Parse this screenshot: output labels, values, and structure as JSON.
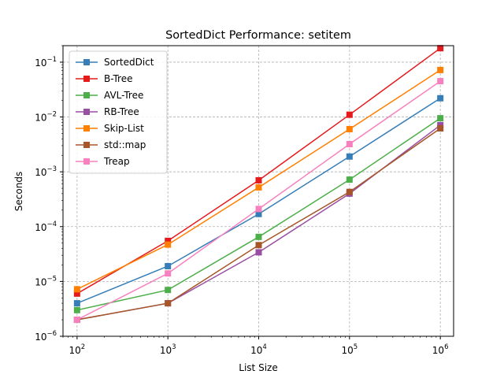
{
  "chart_data": {
    "type": "line",
    "title": "SortedDict Performance: setitem",
    "xlabel": "List Size",
    "ylabel": "Seconds",
    "xscale": "log",
    "yscale": "log",
    "xlim": [
      70,
      1400000
    ],
    "ylim": [
      1e-06,
      0.2
    ],
    "grid": true,
    "legend_position": "top-left",
    "x": [
      100,
      1000,
      10000,
      100000,
      1000000
    ],
    "x_ticks": [
      {
        "value": 100,
        "base": "10",
        "exp": "2"
      },
      {
        "value": 1000,
        "base": "10",
        "exp": "3"
      },
      {
        "value": 10000,
        "base": "10",
        "exp": "4"
      },
      {
        "value": 100000,
        "base": "10",
        "exp": "5"
      },
      {
        "value": 1000000,
        "base": "10",
        "exp": "6"
      }
    ],
    "y_ticks": [
      {
        "value": 1e-06,
        "base": "10",
        "exp": "−6"
      },
      {
        "value": 1e-05,
        "base": "10",
        "exp": "−5"
      },
      {
        "value": 0.0001,
        "base": "10",
        "exp": "−4"
      },
      {
        "value": 0.001,
        "base": "10",
        "exp": "−3"
      },
      {
        "value": 0.01,
        "base": "10",
        "exp": "−2"
      },
      {
        "value": 0.1,
        "base": "10",
        "exp": "−1"
      }
    ],
    "series": [
      {
        "name": "SortedDict",
        "color": "#377eb8",
        "values": [
          4e-06,
          1.9e-05,
          0.00017,
          0.0019,
          0.022
        ]
      },
      {
        "name": "B-Tree",
        "color": "#e41a1c",
        "values": [
          6e-06,
          5.5e-05,
          0.0007,
          0.011,
          0.18
        ]
      },
      {
        "name": "AVL-Tree",
        "color": "#4daf4a",
        "values": [
          3e-06,
          7e-06,
          6.5e-05,
          0.00072,
          0.0095
        ]
      },
      {
        "name": "RB-Tree",
        "color": "#984ea3",
        "values": [
          2e-06,
          4e-06,
          3.4e-05,
          0.0004,
          0.0071
        ]
      },
      {
        "name": "Skip-List",
        "color": "#ff7f00",
        "values": [
          7.2e-06,
          4.7e-05,
          0.00052,
          0.006,
          0.072
        ]
      },
      {
        "name": "std::map",
        "color": "#a65628",
        "values": [
          2e-06,
          4e-06,
          4.6e-05,
          0.00043,
          0.0062
        ]
      },
      {
        "name": "Treap",
        "color": "#f781bf",
        "values": [
          2e-06,
          1.4e-05,
          0.00021,
          0.0032,
          0.045
        ]
      }
    ]
  }
}
